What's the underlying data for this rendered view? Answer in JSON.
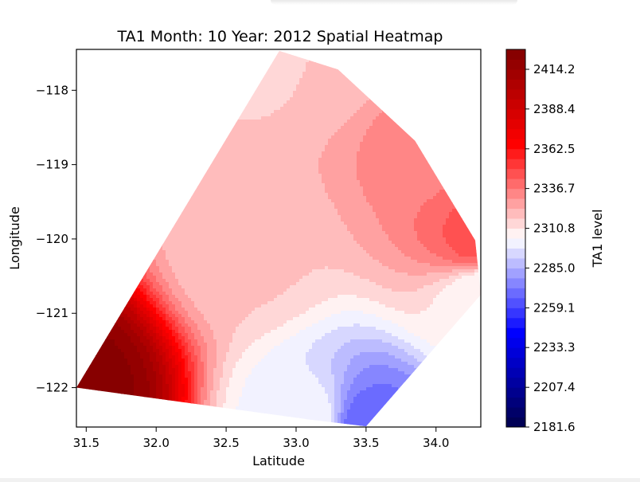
{
  "chart_data": {
    "type": "heatmap",
    "title": "TA1 Month: 10 Year: 2012 Spatial Heatmap",
    "xlabel": "Latitude",
    "ylabel": "Longitude",
    "xlim": [
      31.43,
      34.32
    ],
    "ylim": [
      -122.53,
      -117.45
    ],
    "x_ticks": [
      31.5,
      32.0,
      32.5,
      33.0,
      33.5,
      34.0
    ],
    "x_tick_labels": [
      "31.5",
      "32.0",
      "32.5",
      "33.0",
      "33.5",
      "34.0"
    ],
    "y_ticks": [
      -118,
      -119,
      -120,
      -121,
      -122
    ],
    "y_tick_labels": [
      "−118",
      "−119",
      "−120",
      "−121",
      "−122"
    ],
    "colorbar": {
      "label": "TA1 level",
      "min": 2181.6,
      "max": 2427.15,
      "levels": 38,
      "colormap": "seismic",
      "ticks": [
        2181.6,
        2207.4,
        2233.3,
        2259.1,
        2285.0,
        2310.8,
        2336.7,
        2362.5,
        2388.4,
        2414.2
      ],
      "tick_labels": [
        "2181.6",
        "2207.4",
        "2233.3",
        "2259.1",
        "2285.0",
        "2310.8",
        "2336.7",
        "2362.5",
        "2388.4",
        "2414.2"
      ]
    },
    "hull": [
      [
        31.43,
        -122.0
      ],
      [
        32.88,
        -117.47
      ],
      [
        33.3,
        -117.72
      ],
      [
        33.85,
        -118.68
      ],
      [
        34.28,
        -120.02
      ],
      [
        34.32,
        -120.75
      ],
      [
        33.5,
        -122.52
      ],
      [
        33.1,
        -122.43
      ]
    ],
    "points": [
      {
        "x": 31.43,
        "y": -122.0,
        "v": 2424
      },
      {
        "x": 32.9,
        "y": -117.5,
        "v": 2315
      },
      {
        "x": 33.3,
        "y": -117.72,
        "v": 2322
      },
      {
        "x": 33.85,
        "y": -118.68,
        "v": 2333
      },
      {
        "x": 34.28,
        "y": -120.02,
        "v": 2345
      },
      {
        "x": 34.32,
        "y": -120.75,
        "v": 2305
      },
      {
        "x": 33.5,
        "y": -122.52,
        "v": 2268
      },
      {
        "x": 33.1,
        "y": -122.45,
        "v": 2302
      },
      {
        "x": 32.65,
        "y": -120.15,
        "v": 2318
      }
    ],
    "colors": {
      "negative": "#0000ff",
      "positive": "#ff0000",
      "low_end": "#00004c",
      "high_end": "#800000"
    }
  }
}
